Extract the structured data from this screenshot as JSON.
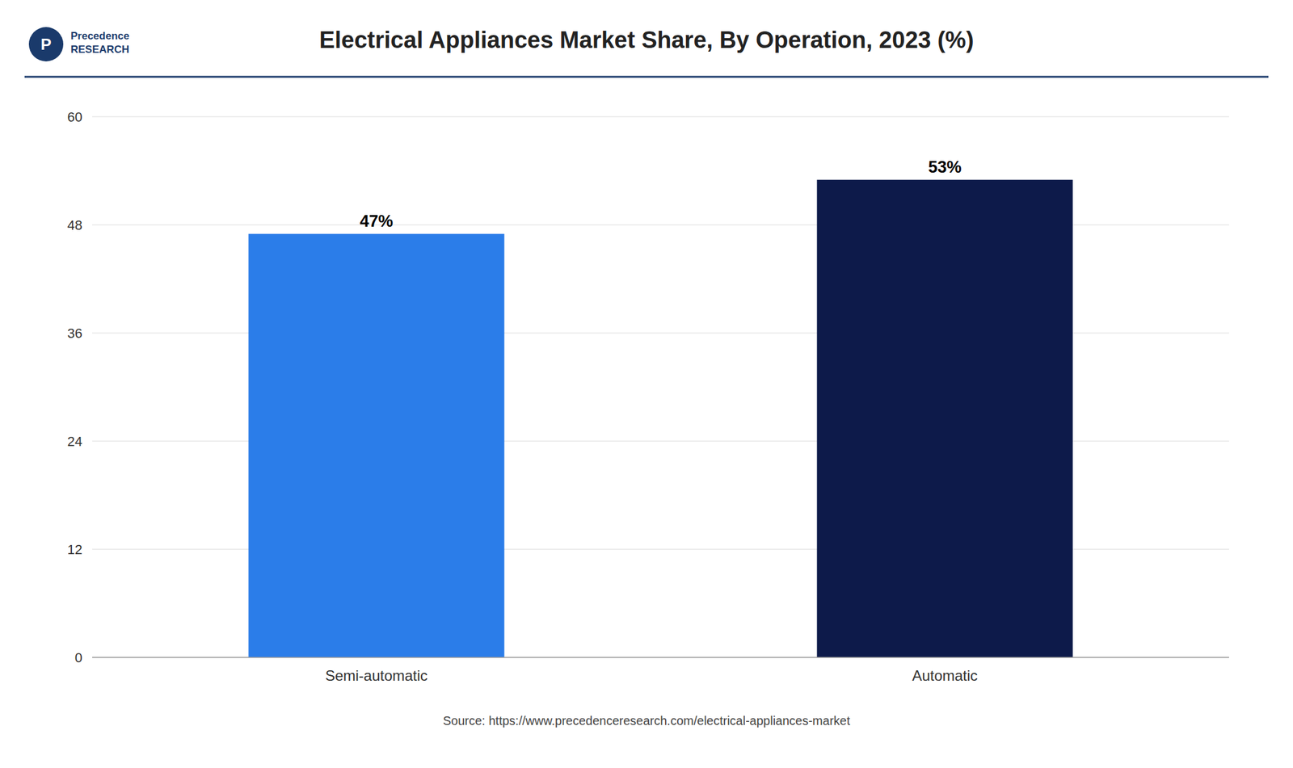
{
  "chart_data": {
    "type": "bar",
    "title": "Electrical Appliances Market Share, By Operation, 2023 (%)",
    "categories": [
      "Semi-automatic",
      "Automatic"
    ],
    "values": [
      47,
      53
    ],
    "value_labels": [
      "47%",
      "53%"
    ],
    "data_labels": true,
    "colors": [
      "#2b7de9",
      "#0d1a4a"
    ],
    "ylim": [
      0,
      60
    ],
    "yticks": [
      0,
      12,
      24,
      36,
      48,
      60
    ],
    "grid": true,
    "annotations": [
      "Source: https://www.precedenceresearch.com/electrical-appliances-market",
      "Precedence\nRESEARCH",
      "P"
    ]
  }
}
